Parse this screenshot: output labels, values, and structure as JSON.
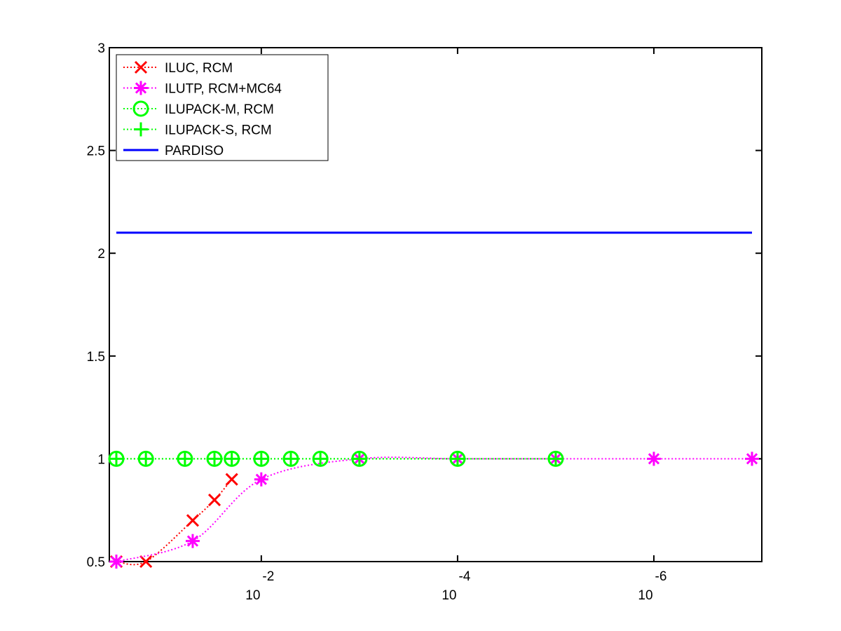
{
  "chart_data": {
    "type": "line",
    "title": "",
    "xlabel": "",
    "ylabel": "",
    "xscale": "log",
    "x_direction": "reversed",
    "xlim": [
      0.3,
      1e-07
    ],
    "ylim": [
      0.5,
      3
    ],
    "grid": false,
    "legend_position": "top-left",
    "y_ticks": [
      "0.5",
      "1",
      "1.5",
      "2",
      "2.5",
      "3"
    ],
    "y_tick_values": [
      0.5,
      1,
      1.5,
      2,
      2.5,
      3
    ],
    "x_ticks": [
      {
        "value": 0.01,
        "base": "10",
        "exp": "-2"
      },
      {
        "value": 0.0001,
        "base": "10",
        "exp": "-4"
      },
      {
        "value": 1e-06,
        "base": "10",
        "exp": "-6"
      }
    ],
    "series": [
      {
        "name": "ILUC, RCM",
        "color": "#ff0000",
        "marker": "x",
        "line": "dotted",
        "x": [
          0.3,
          0.15,
          0.05,
          0.03,
          0.02
        ],
        "y": [
          0.5,
          0.5,
          0.7,
          0.8,
          0.9
        ]
      },
      {
        "name": "ILUTP, RCM+MC64",
        "color": "#ff00ff",
        "marker": "asterisk",
        "line": "dotted",
        "x": [
          0.3,
          0.05,
          0.01,
          0.001,
          0.0001,
          1e-05,
          1e-06,
          1e-07
        ],
        "y": [
          0.5,
          0.6,
          0.9,
          1,
          1,
          1,
          1,
          1
        ]
      },
      {
        "name": "ILUPACK-M, RCM",
        "color": "#00ff00",
        "marker": "circle",
        "line": "dotted",
        "x": [
          0.3,
          0.15,
          0.06,
          0.03,
          0.02,
          0.01,
          0.005,
          0.0025,
          0.001,
          0.0001,
          1e-05
        ],
        "y": [
          1,
          1,
          1,
          1,
          1,
          1,
          1,
          1,
          1,
          1,
          1
        ]
      },
      {
        "name": "ILUPACK-S, RCM",
        "color": "#00ff00",
        "marker": "plus",
        "line": "dotted",
        "x": [
          0.3,
          0.15,
          0.06,
          0.03,
          0.02,
          0.01,
          0.005,
          0.0025,
          0.001,
          0.0001,
          1e-05
        ],
        "y": [
          1,
          1,
          1,
          1,
          1,
          1,
          1,
          1,
          1,
          1,
          1
        ]
      },
      {
        "name": "PARDISO",
        "color": "#0000ff",
        "marker": "none",
        "line": "solid",
        "x": [
          0.3,
          1e-07
        ],
        "y": [
          2.1,
          2.1
        ]
      }
    ]
  }
}
